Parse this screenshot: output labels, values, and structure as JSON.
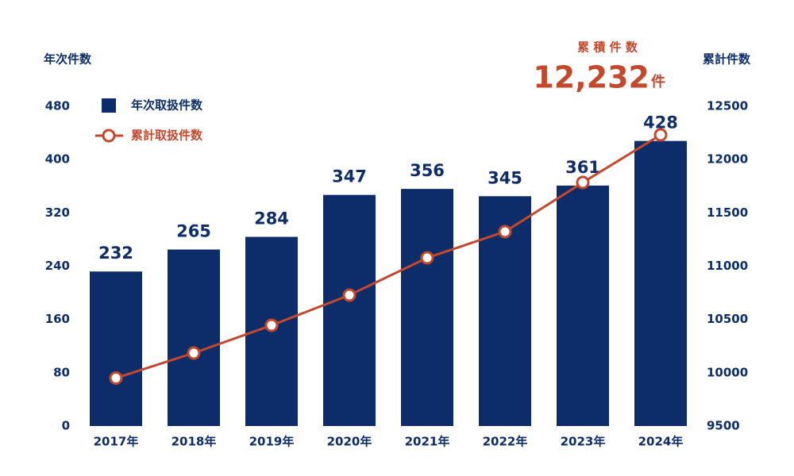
{
  "chart_data": {
    "type": "bar",
    "y_label": "年次件数",
    "y2_label": "累計件数",
    "categories": [
      "2017年",
      "2018年",
      "2019年",
      "2020年",
      "2021年",
      "2022年",
      "2023年",
      "2024年"
    ],
    "series": [
      {
        "name": "年次取扱件数",
        "color": "#0c2d69",
        "values": [
          232,
          265,
          284,
          347,
          356,
          345,
          361,
          428
        ]
      },
      {
        "name": "累計取扱件数",
        "color": "#c4482c",
        "type": "line",
        "axis": "y2",
        "values": [
          9950,
          10185,
          10445,
          10728,
          11078,
          11324,
          11785,
          12232
        ]
      }
    ],
    "ylim": [
      0,
      480
    ],
    "yticks": [
      0,
      80,
      160,
      240,
      320,
      400,
      480
    ],
    "y2lim": [
      9500,
      12500
    ],
    "y2ticks": [
      9500,
      10000,
      10500,
      11000,
      11500,
      12000,
      12500
    ],
    "legend": "upper left",
    "annotation": {
      "title": "累 積 件 数",
      "value": "12,232",
      "unit": "件"
    }
  }
}
